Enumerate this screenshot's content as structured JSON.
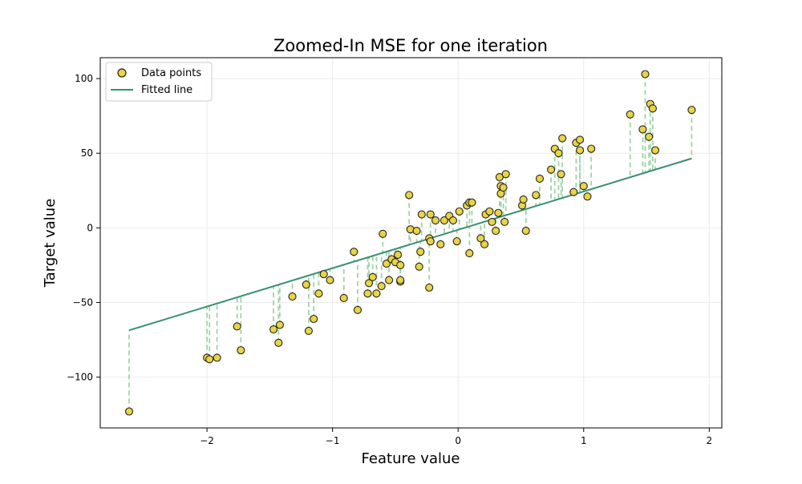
{
  "chart_data": {
    "type": "scatter",
    "title": "Zoomed-In MSE for one iteration",
    "xlabel": "Feature value",
    "ylabel": "Target value",
    "xlim": [
      -2.85,
      2.1
    ],
    "ylim": [
      -134,
      114
    ],
    "x_ticks": [
      -2,
      -1,
      0,
      1,
      2
    ],
    "x_tick_labels": [
      "−2",
      "−1",
      "0",
      "1",
      "2"
    ],
    "y_ticks": [
      -100,
      -50,
      0,
      50,
      100
    ],
    "y_tick_labels": [
      "−100",
      "−50",
      "0",
      "50",
      "100"
    ],
    "grid": true,
    "legend": {
      "position": "top-left",
      "entries": [
        "Data points",
        "Fitted line"
      ]
    },
    "fitted_line": {
      "name": "Fitted line",
      "slope": 25.7,
      "intercept": -1.3,
      "x_range": [
        -2.62,
        1.86
      ],
      "color": "#3a8f72"
    },
    "residual_color": "#9fd3a7",
    "point_color": "#e8d445",
    "point_edge_color": "#222222",
    "series": [
      {
        "name": "Data points",
        "points": [
          [
            -2.62,
            -123
          ],
          [
            -2.0,
            -87
          ],
          [
            -1.98,
            -88
          ],
          [
            -1.92,
            -87
          ],
          [
            -1.76,
            -66
          ],
          [
            -1.73,
            -82
          ],
          [
            -1.47,
            -68
          ],
          [
            -1.43,
            -77
          ],
          [
            -1.42,
            -65
          ],
          [
            -1.32,
            -46
          ],
          [
            -1.21,
            -38
          ],
          [
            -1.19,
            -69
          ],
          [
            -1.15,
            -61
          ],
          [
            -1.11,
            -44
          ],
          [
            -1.07,
            -31
          ],
          [
            -1.02,
            -35
          ],
          [
            -0.91,
            -47
          ],
          [
            -0.83,
            -16
          ],
          [
            -0.8,
            -55
          ],
          [
            -0.72,
            -44
          ],
          [
            -0.71,
            -37
          ],
          [
            -0.68,
            -33
          ],
          [
            -0.65,
            -44
          ],
          [
            -0.61,
            -39
          ],
          [
            -0.6,
            -4
          ],
          [
            -0.57,
            -24
          ],
          [
            -0.55,
            -35
          ],
          [
            -0.53,
            -21
          ],
          [
            -0.5,
            -23
          ],
          [
            -0.48,
            -18
          ],
          [
            -0.46,
            -36
          ],
          [
            -0.46,
            -25
          ],
          [
            -0.46,
            -35
          ],
          [
            -0.39,
            22
          ],
          [
            -0.38,
            -1
          ],
          [
            -0.33,
            -2
          ],
          [
            -0.31,
            -26
          ],
          [
            -0.3,
            -16
          ],
          [
            -0.29,
            9
          ],
          [
            -0.23,
            -7
          ],
          [
            -0.23,
            -40
          ],
          [
            -0.22,
            9
          ],
          [
            -0.22,
            -9
          ],
          [
            -0.18,
            5
          ],
          [
            -0.14,
            -11
          ],
          [
            -0.11,
            5
          ],
          [
            -0.07,
            8
          ],
          [
            -0.04,
            5
          ],
          [
            -0.01,
            -9
          ],
          [
            0.01,
            11
          ],
          [
            0.07,
            15
          ],
          [
            0.09,
            17
          ],
          [
            0.09,
            -17
          ],
          [
            0.11,
            17
          ],
          [
            0.18,
            -7
          ],
          [
            0.21,
            -11
          ],
          [
            0.22,
            9
          ],
          [
            0.25,
            11
          ],
          [
            0.27,
            4
          ],
          [
            0.3,
            -2
          ],
          [
            0.32,
            10
          ],
          [
            0.33,
            34
          ],
          [
            0.34,
            28
          ],
          [
            0.34,
            23
          ],
          [
            0.36,
            27
          ],
          [
            0.37,
            4
          ],
          [
            0.38,
            36
          ],
          [
            0.51,
            15
          ],
          [
            0.52,
            19
          ],
          [
            0.54,
            -2
          ],
          [
            0.62,
            22
          ],
          [
            0.65,
            33
          ],
          [
            0.74,
            39
          ],
          [
            0.77,
            53
          ],
          [
            0.8,
            50
          ],
          [
            0.82,
            36
          ],
          [
            0.83,
            60
          ],
          [
            0.92,
            24
          ],
          [
            0.94,
            57
          ],
          [
            0.97,
            59
          ],
          [
            0.97,
            52
          ],
          [
            1.0,
            28
          ],
          [
            1.03,
            21
          ],
          [
            1.06,
            53
          ],
          [
            1.37,
            76
          ],
          [
            1.47,
            66
          ],
          [
            1.49,
            103
          ],
          [
            1.52,
            61
          ],
          [
            1.53,
            83
          ],
          [
            1.55,
            80
          ],
          [
            1.57,
            52
          ],
          [
            1.86,
            79
          ]
        ]
      }
    ]
  }
}
